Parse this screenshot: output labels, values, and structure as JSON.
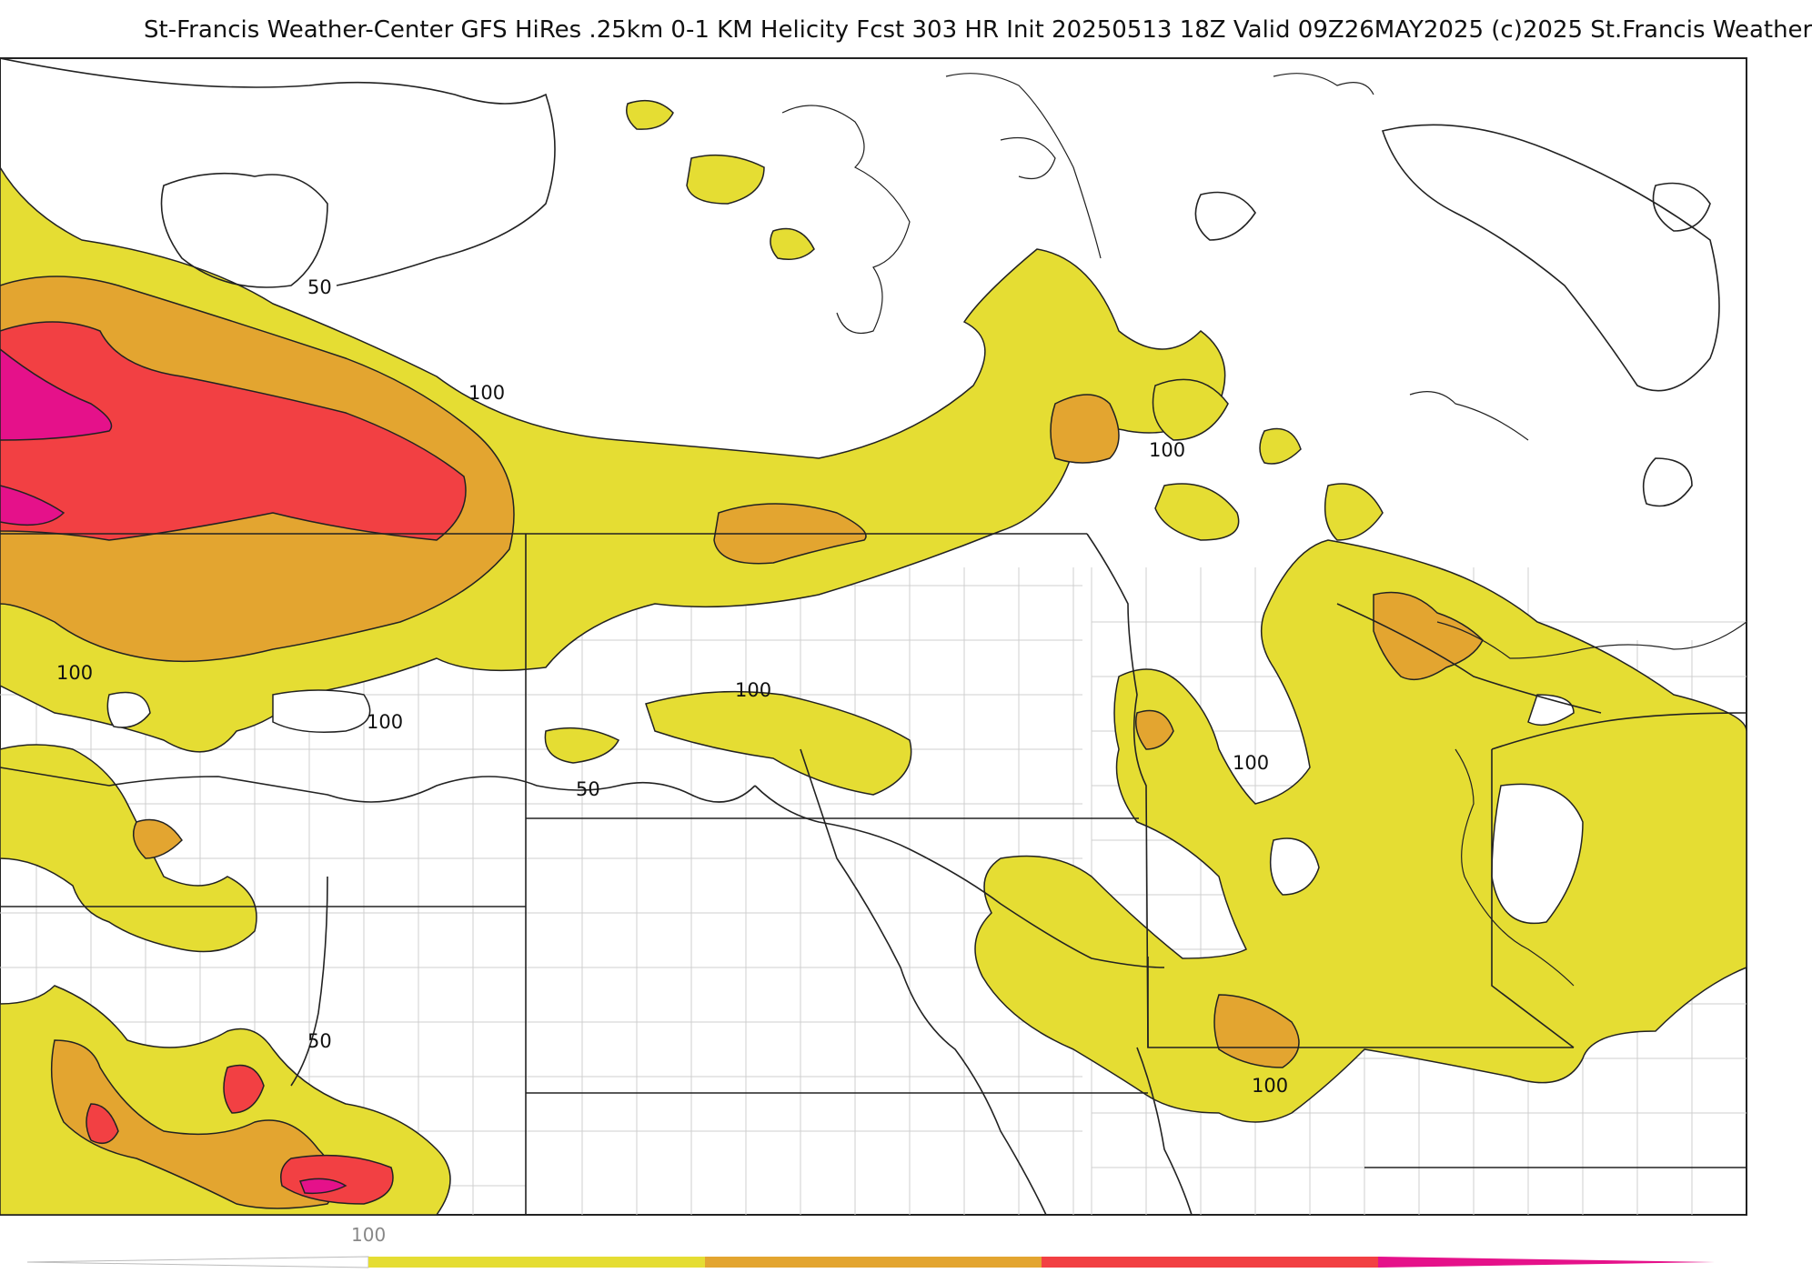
{
  "header": {
    "title": "St-Francis Weather-Center GFS HiRes .25km 0-1 KM Helicity Fcst 303 HR Init 20250513 18Z  Valid 09Z26MAY2025    (c)2025 St.Francis Weather"
  },
  "map": {
    "contour_labels": [
      {
        "id": "l1",
        "text": "50"
      },
      {
        "id": "l2",
        "text": "100"
      },
      {
        "id": "l3",
        "text": "100"
      },
      {
        "id": "l4",
        "text": "100"
      },
      {
        "id": "l5",
        "text": "100"
      },
      {
        "id": "l6",
        "text": "100"
      },
      {
        "id": "l7",
        "text": "50"
      },
      {
        "id": "l8",
        "text": "100"
      },
      {
        "id": "l9",
        "text": "50"
      },
      {
        "id": "l10",
        "text": "100"
      }
    ],
    "fill_colors": {
      "level_100": "#e5dd33",
      "level_150": "#e3a530",
      "level_200": "#f24043",
      "level_250": "#e5118a"
    }
  },
  "legend": {
    "tick_label": "100",
    "segments": [
      {
        "color": "#ffffff"
      },
      {
        "color": "#e5dd33"
      },
      {
        "color": "#e3a530"
      },
      {
        "color": "#f24043"
      },
      {
        "color": "#e5118a"
      }
    ]
  }
}
